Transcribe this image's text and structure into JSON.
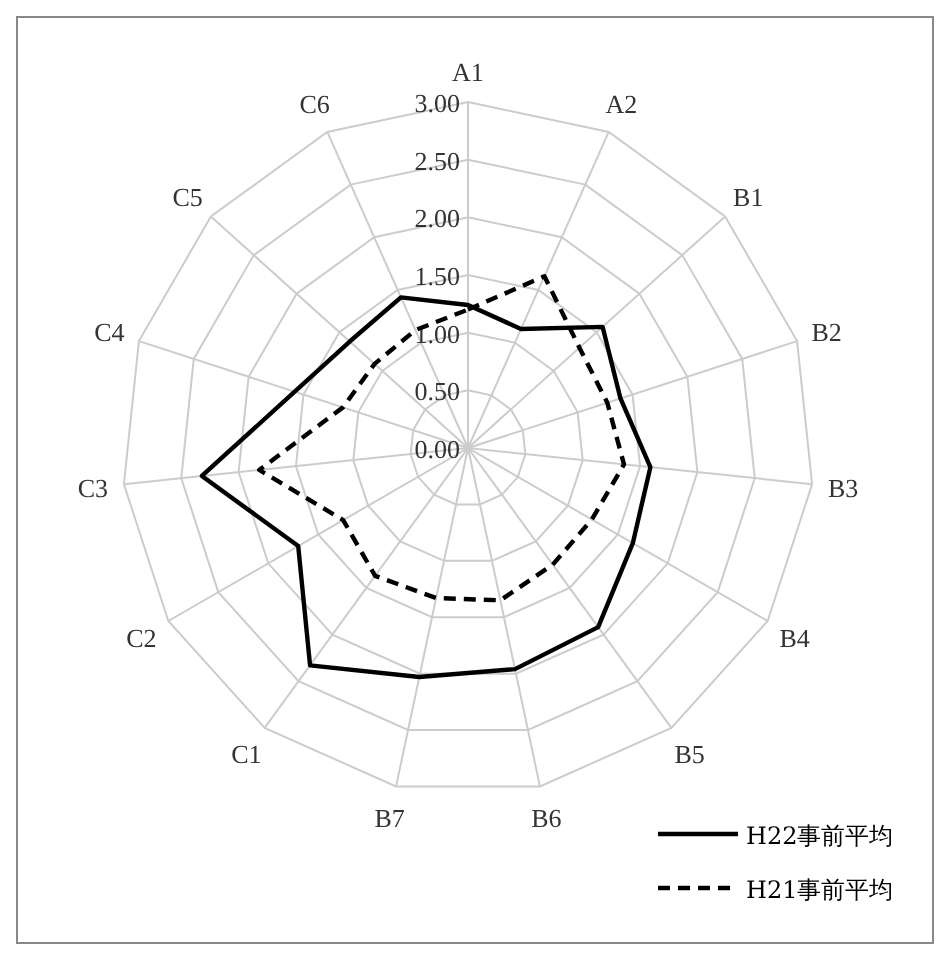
{
  "chart_data": {
    "type": "radar",
    "categories": [
      "A1",
      "A2",
      "B1",
      "B2",
      "B3",
      "B4",
      "B5",
      "B6",
      "B7",
      "C1",
      "C2",
      "C3",
      "C4",
      "C5",
      "C6"
    ],
    "ylim": [
      0,
      3
    ],
    "yticks": [
      {
        "value": 0,
        "label": "0.00"
      },
      {
        "value": 0.5,
        "label": "0.50"
      },
      {
        "value": 1,
        "label": "1.00"
      },
      {
        "value": 1.5,
        "label": "1.50"
      },
      {
        "value": 2,
        "label": "2.00"
      },
      {
        "value": 2.5,
        "label": "2.50"
      },
      {
        "value": 3,
        "label": "3.00"
      }
    ],
    "grid": true,
    "legend": "bottom right",
    "marker": "none",
    "series": [
      {
        "name": "H22事前平均",
        "color": "#000000",
        "line_style": "solid",
        "values": [
          1.24,
          1.13,
          1.57,
          1.39,
          1.59,
          1.65,
          1.92,
          1.96,
          2.03,
          2.33,
          1.7,
          2.32,
          1.58,
          1.38,
          1.43
        ]
      },
      {
        "name": "H21事前平均",
        "color": "#000000",
        "line_style": "dashed",
        "values": [
          1.2,
          1.63,
          1.3,
          1.27,
          1.36,
          1.24,
          1.25,
          1.35,
          1.33,
          1.37,
          1.25,
          1.82,
          1.14,
          1.09,
          1.12
        ]
      }
    ]
  }
}
